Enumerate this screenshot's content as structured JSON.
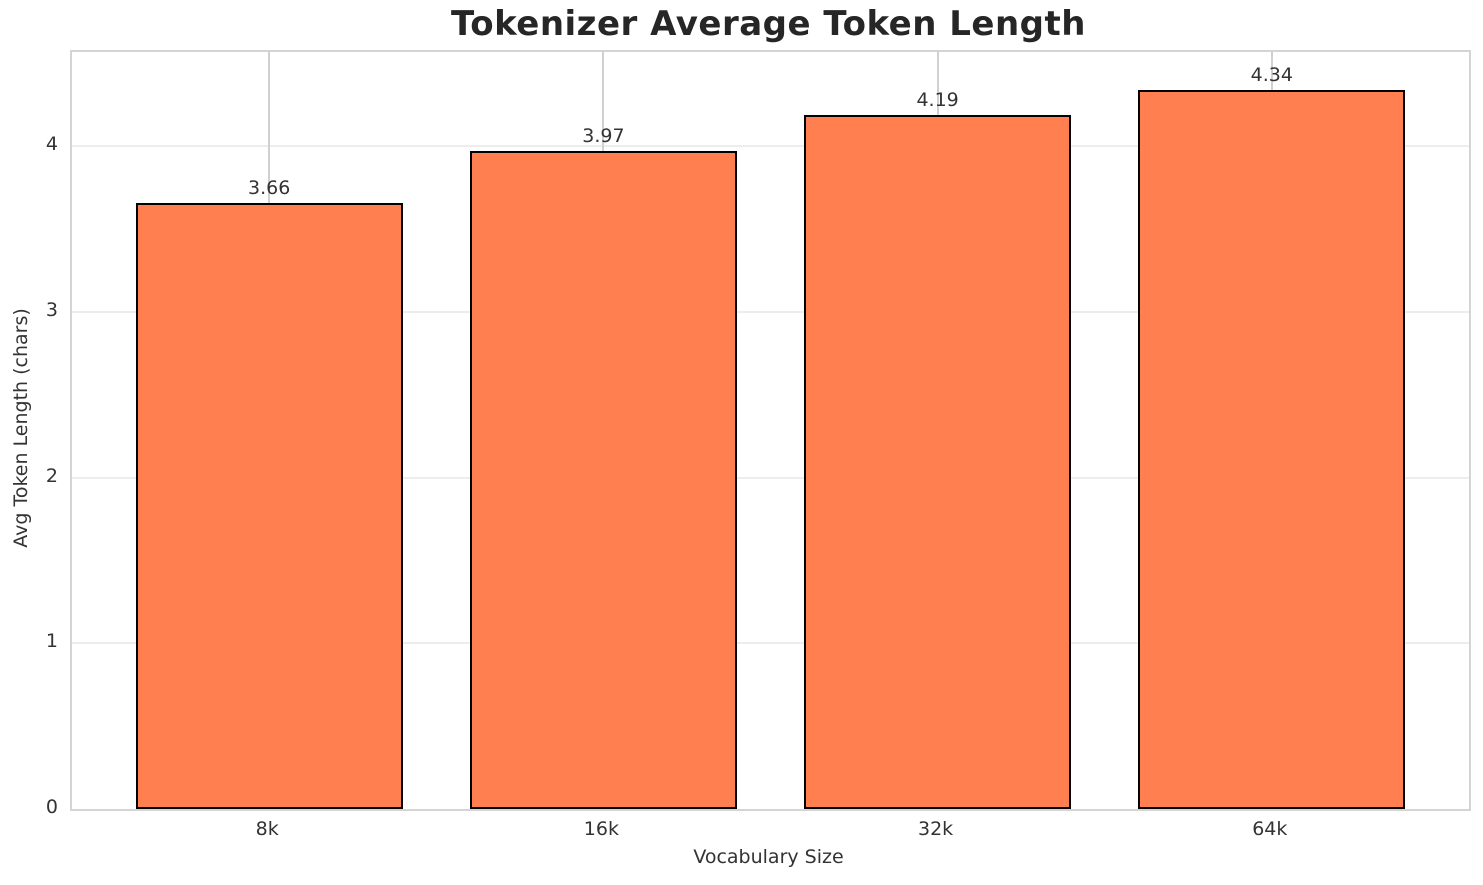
{
  "chart_data": {
    "type": "bar",
    "title": "Tokenizer Average Token Length",
    "xlabel": "Vocabulary Size",
    "ylabel": "Avg Token Length (chars)",
    "categories": [
      "8k",
      "16k",
      "32k",
      "64k"
    ],
    "values": [
      3.66,
      3.97,
      4.19,
      4.34
    ],
    "value_labels": [
      "3.66",
      "3.97",
      "4.19",
      "4.34"
    ],
    "yticks": [
      0,
      1,
      2,
      3,
      4
    ],
    "ylim": [
      0,
      4.57
    ],
    "grid": true,
    "legend": "none",
    "bar_color": "#FF7F50",
    "bar_edge_color": "#000000",
    "plot_background": "#ffffff",
    "figure_background": "#ffffff",
    "spine_color": "#d4d4d4",
    "h_grid_color": "#ededed",
    "v_grid_color": "#d0d0d0",
    "text_color": "#333333",
    "title_color": "#262626"
  }
}
